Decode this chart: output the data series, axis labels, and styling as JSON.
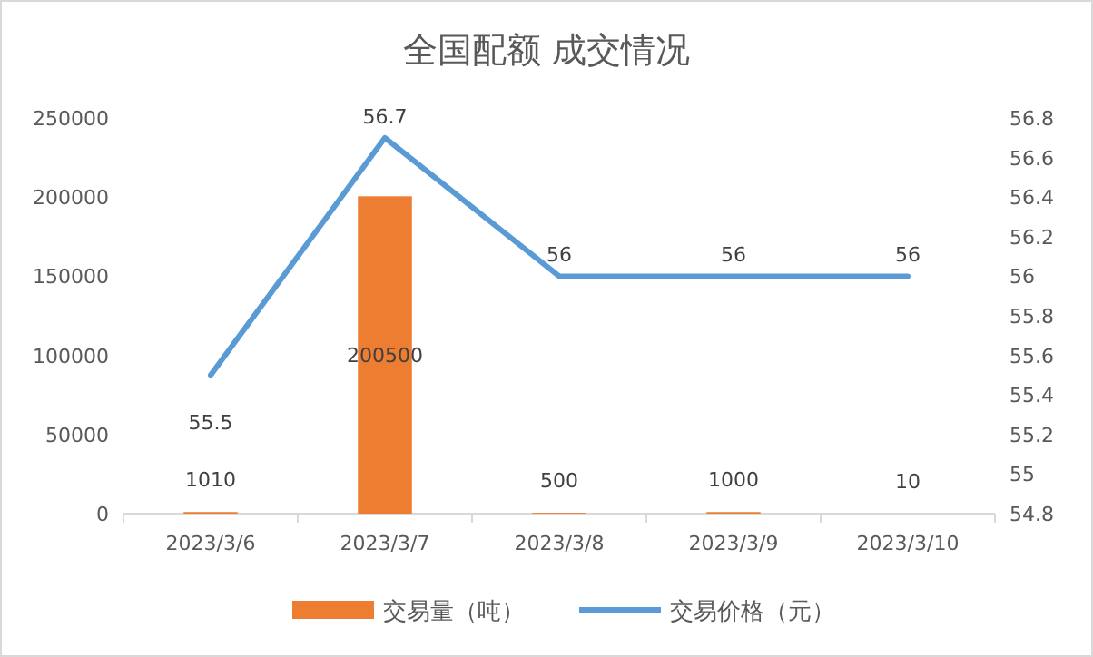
{
  "chart_data": {
    "type": "bar",
    "title": "全国配额 成交情况",
    "categories": [
      "2023/3/6",
      "2023/3/7",
      "2023/3/8",
      "2023/3/9",
      "2023/3/10"
    ],
    "series": [
      {
        "name": "交易量（吨）",
        "color": "#ed7d31",
        "values": [
          1010,
          200500,
          500,
          1000,
          10
        ]
      },
      {
        "name": "交易价格（元）",
        "type": "line",
        "axis": "y2",
        "color": "#5b9bd5",
        "values": [
          55.5,
          56.7,
          56,
          56,
          56
        ]
      }
    ],
    "ylim": [
      0,
      250000
    ],
    "yticks": [
      0,
      50000,
      100000,
      150000,
      200000,
      250000
    ],
    "y2lim": [
      54.8,
      56.8
    ],
    "y2ticks": [
      54.8,
      55,
      55.2,
      55.4,
      55.6,
      55.8,
      56,
      56.2,
      56.4,
      56.6,
      56.8
    ],
    "data_labels": true,
    "legend": "bottom",
    "marker": "none"
  }
}
